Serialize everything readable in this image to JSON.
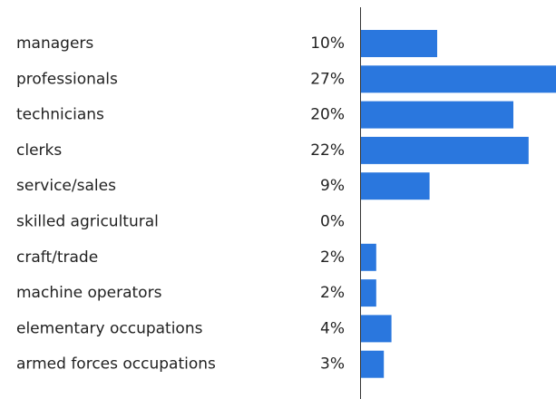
{
  "chart_data": {
    "type": "bar",
    "orientation": "horizontal",
    "categories": [
      "managers",
      "professionals",
      "technicians",
      "clerks",
      "service/sales",
      "skilled agricultural",
      "craft/trade",
      "machine operators",
      "elementary occupations",
      "armed forces occupations"
    ],
    "values": [
      10,
      27,
      20,
      22,
      9,
      0,
      2,
      2,
      4,
      3
    ],
    "value_labels": [
      "10%",
      "27%",
      "20%",
      "22%",
      "9%",
      "0%",
      "2%",
      "2%",
      "4%",
      "3%"
    ],
    "color": "#2a77de"
  }
}
